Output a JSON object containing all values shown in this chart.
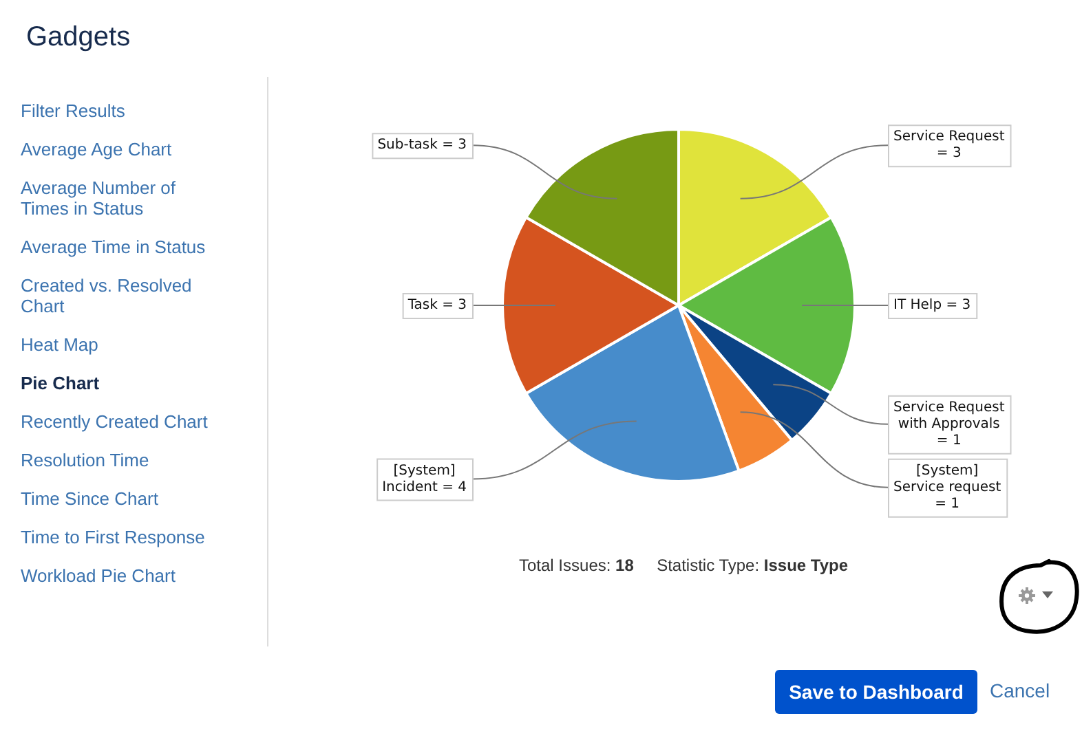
{
  "chart_data": {
    "type": "pie",
    "categories": [
      "Service Request",
      "IT Help",
      "Service Request with Approvals",
      "[System] Service request",
      "[System] Incident",
      "Task",
      "Sub-task"
    ],
    "values": [
      3,
      3,
      1,
      1,
      4,
      3,
      3
    ],
    "colors": [
      "#e0e33b",
      "#5fbb42",
      "#0b4385",
      "#f58532",
      "#478ccb",
      "#d5541f",
      "#779a14"
    ],
    "value_labels": [
      "= 3",
      "= 3",
      "= 1",
      "= 1",
      "= 4",
      "= 3",
      "= 3"
    ],
    "legend": false,
    "annotations": [
      "Gadgets",
      "Filter Results",
      "Average Age Chart",
      "Average Number of Times in Status",
      "Average Time in Status",
      "Created vs. Resolved Chart",
      "Heat Map",
      "Pie Chart",
      "Recently Created Chart",
      "Resolution Time",
      "Time Since Chart",
      "Time to First Response",
      "Workload Pie Chart",
      "Total Issues:",
      "18",
      "Statistic Type:",
      "Issue Type",
      "Save to Dashboard",
      "Cancel"
    ]
  }
}
